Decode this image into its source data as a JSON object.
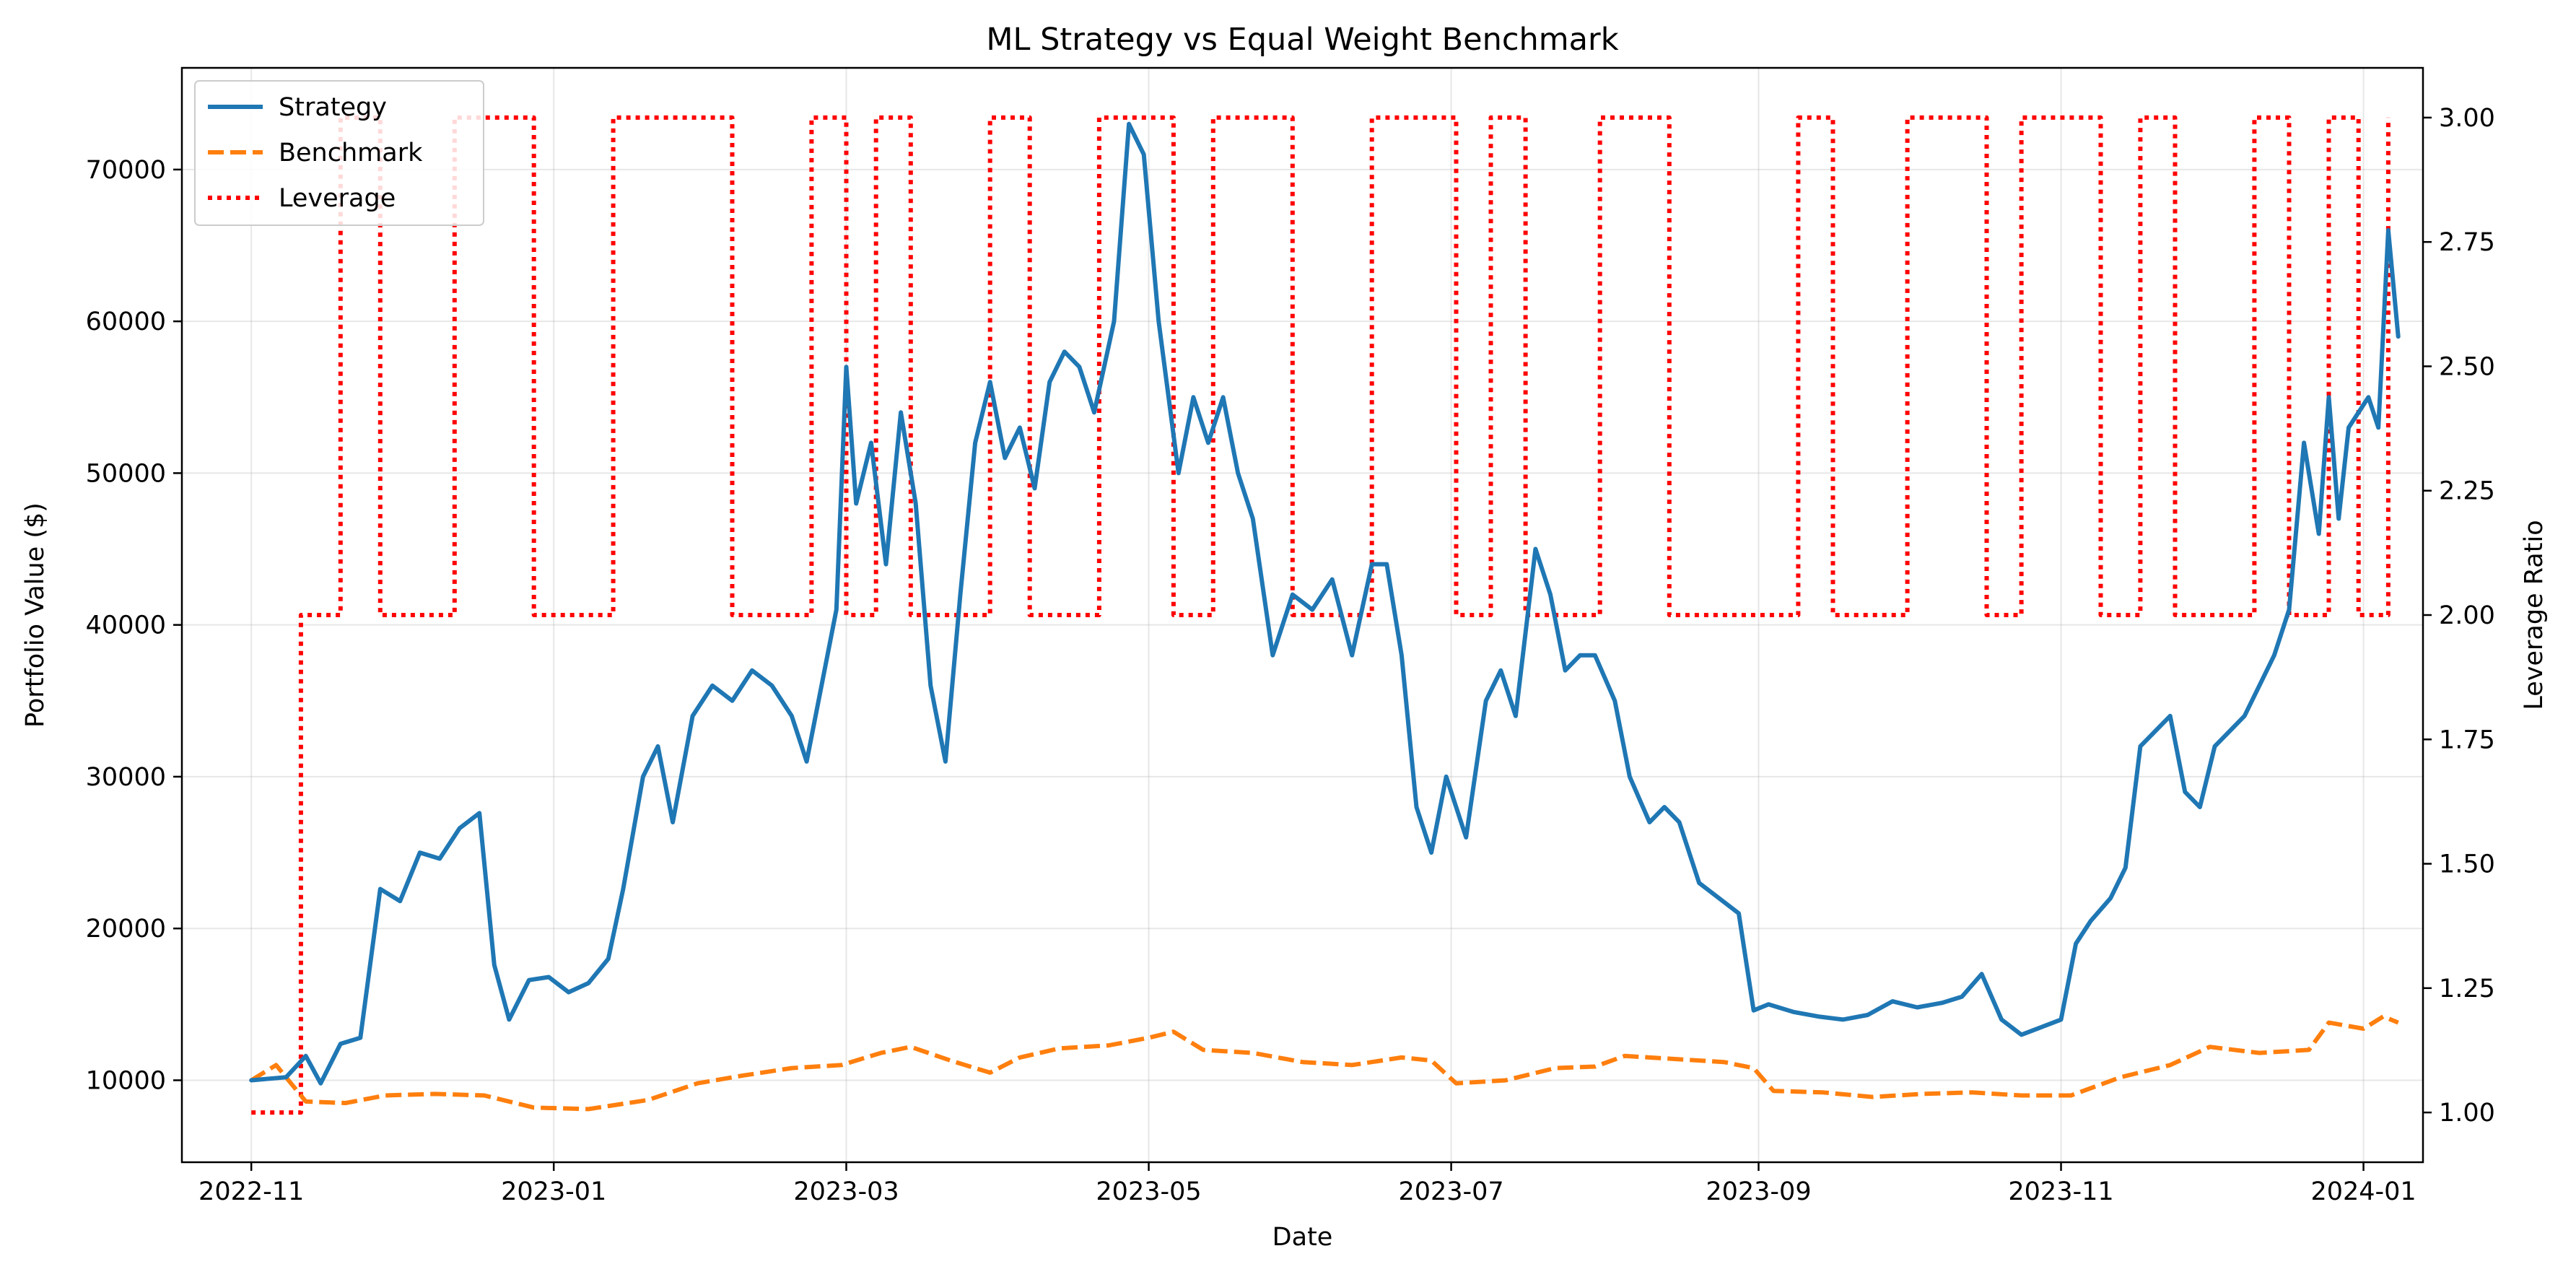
{
  "chart_data": {
    "type": "line",
    "title": "ML Strategy vs Equal Weight Benchmark",
    "xlabel": "Date",
    "ylabel": "Portfolio Value ($)",
    "y2label": "Leverage Ratio",
    "xlim": [
      "2022-10-18",
      "2024-01-13"
    ],
    "ylim": [
      4600,
      76700
    ],
    "y2lim": [
      0.9,
      3.1
    ],
    "x_ticks": [
      "2022-11-01",
      "2023-01-01",
      "2023-03-01",
      "2023-05-01",
      "2023-07-01",
      "2023-09-01",
      "2023-11-01",
      "2024-01-01"
    ],
    "x_tick_labels": [
      "2022-11",
      "2023-01",
      "2023-03",
      "2023-05",
      "2023-07",
      "2023-09",
      "2023-11",
      "2024-01"
    ],
    "y_ticks": [
      10000,
      20000,
      30000,
      40000,
      50000,
      60000,
      70000
    ],
    "y_tick_labels": [
      "10000",
      "20000",
      "30000",
      "40000",
      "50000",
      "60000",
      "70000"
    ],
    "y2_ticks": [
      1.0,
      1.25,
      1.5,
      1.75,
      2.0,
      2.25,
      2.5,
      2.75,
      3.0
    ],
    "y2_tick_labels": [
      "1.00",
      "1.25",
      "1.50",
      "1.75",
      "2.00",
      "2.25",
      "2.50",
      "2.75",
      "3.00"
    ],
    "grid": true,
    "legend_position": "top-left",
    "series": [
      {
        "name": "Strategy",
        "axis": "left",
        "color": "#1f77b4",
        "style": "solid",
        "points": [
          [
            "2022-11-01",
            10000
          ],
          [
            "2022-11-08",
            10200
          ],
          [
            "2022-11-12",
            11600
          ],
          [
            "2022-11-15",
            9800
          ],
          [
            "2022-11-19",
            12400
          ],
          [
            "2022-11-23",
            12800
          ],
          [
            "2022-11-27",
            22600
          ],
          [
            "2022-12-01",
            21800
          ],
          [
            "2022-12-05",
            25000
          ],
          [
            "2022-12-09",
            24600
          ],
          [
            "2022-12-13",
            26600
          ],
          [
            "2022-12-17",
            27600
          ],
          [
            "2022-12-20",
            17600
          ],
          [
            "2022-12-23",
            14000
          ],
          [
            "2022-12-27",
            16600
          ],
          [
            "2022-12-31",
            16800
          ],
          [
            "2023-01-04",
            15800
          ],
          [
            "2023-01-08",
            16400
          ],
          [
            "2023-01-12",
            18000
          ],
          [
            "2023-01-15",
            22600
          ],
          [
            "2023-01-19",
            30000
          ],
          [
            "2023-01-22",
            32000
          ],
          [
            "2023-01-25",
            27000
          ],
          [
            "2023-01-29",
            34000
          ],
          [
            "2023-02-02",
            36000
          ],
          [
            "2023-02-06",
            35000
          ],
          [
            "2023-02-10",
            37000
          ],
          [
            "2023-02-14",
            36000
          ],
          [
            "2023-02-18",
            34000
          ],
          [
            "2023-02-21",
            31000
          ],
          [
            "2023-02-24",
            36000
          ],
          [
            "2023-02-27",
            41000
          ],
          [
            "2023-03-01",
            57000
          ],
          [
            "2023-03-03",
            48000
          ],
          [
            "2023-03-06",
            52000
          ],
          [
            "2023-03-09",
            44000
          ],
          [
            "2023-03-12",
            54000
          ],
          [
            "2023-03-15",
            48000
          ],
          [
            "2023-03-18",
            36000
          ],
          [
            "2023-03-21",
            31000
          ],
          [
            "2023-03-24",
            42000
          ],
          [
            "2023-03-27",
            52000
          ],
          [
            "2023-03-30",
            56000
          ],
          [
            "2023-04-02",
            51000
          ],
          [
            "2023-04-05",
            53000
          ],
          [
            "2023-04-08",
            49000
          ],
          [
            "2023-04-11",
            56000
          ],
          [
            "2023-04-14",
            58000
          ],
          [
            "2023-04-17",
            57000
          ],
          [
            "2023-04-20",
            54000
          ],
          [
            "2023-04-24",
            60000
          ],
          [
            "2023-04-27",
            73000
          ],
          [
            "2023-04-30",
            71000
          ],
          [
            "2023-05-03",
            60000
          ],
          [
            "2023-05-07",
            50000
          ],
          [
            "2023-05-10",
            55000
          ],
          [
            "2023-05-13",
            52000
          ],
          [
            "2023-05-16",
            55000
          ],
          [
            "2023-05-19",
            50000
          ],
          [
            "2023-05-22",
            47000
          ],
          [
            "2023-05-26",
            38000
          ],
          [
            "2023-05-30",
            42000
          ],
          [
            "2023-06-03",
            41000
          ],
          [
            "2023-06-07",
            43000
          ],
          [
            "2023-06-11",
            38000
          ],
          [
            "2023-06-15",
            44000
          ],
          [
            "2023-06-18",
            44000
          ],
          [
            "2023-06-21",
            38000
          ],
          [
            "2023-06-24",
            28000
          ],
          [
            "2023-06-27",
            25000
          ],
          [
            "2023-06-30",
            30000
          ],
          [
            "2023-07-04",
            26000
          ],
          [
            "2023-07-08",
            35000
          ],
          [
            "2023-07-11",
            37000
          ],
          [
            "2023-07-14",
            34000
          ],
          [
            "2023-07-18",
            45000
          ],
          [
            "2023-07-21",
            42000
          ],
          [
            "2023-07-24",
            37000
          ],
          [
            "2023-07-27",
            38000
          ],
          [
            "2023-07-30",
            38000
          ],
          [
            "2023-08-03",
            35000
          ],
          [
            "2023-08-06",
            30000
          ],
          [
            "2023-08-10",
            27000
          ],
          [
            "2023-08-13",
            28000
          ],
          [
            "2023-08-16",
            27000
          ],
          [
            "2023-08-20",
            23000
          ],
          [
            "2023-08-24",
            22000
          ],
          [
            "2023-08-28",
            21000
          ],
          [
            "2023-08-31",
            14600
          ],
          [
            "2023-09-03",
            15000
          ],
          [
            "2023-09-08",
            14500
          ],
          [
            "2023-09-13",
            14200
          ],
          [
            "2023-09-18",
            14000
          ],
          [
            "2023-09-23",
            14300
          ],
          [
            "2023-09-28",
            15200
          ],
          [
            "2023-10-03",
            14800
          ],
          [
            "2023-10-08",
            15100
          ],
          [
            "2023-10-12",
            15500
          ],
          [
            "2023-10-16",
            17000
          ],
          [
            "2023-10-20",
            14000
          ],
          [
            "2023-10-24",
            13000
          ],
          [
            "2023-10-28",
            13500
          ],
          [
            "2023-11-01",
            14000
          ],
          [
            "2023-11-04",
            19000
          ],
          [
            "2023-11-07",
            20500
          ],
          [
            "2023-11-11",
            22000
          ],
          [
            "2023-11-14",
            24000
          ],
          [
            "2023-11-17",
            32000
          ],
          [
            "2023-11-20",
            33000
          ],
          [
            "2023-11-23",
            34000
          ],
          [
            "2023-11-26",
            29000
          ],
          [
            "2023-11-29",
            28000
          ],
          [
            "2023-12-02",
            32000
          ],
          [
            "2023-12-05",
            33000
          ],
          [
            "2023-12-08",
            34000
          ],
          [
            "2023-12-11",
            36000
          ],
          [
            "2023-12-14",
            38000
          ],
          [
            "2023-12-17",
            41000
          ],
          [
            "2023-12-20",
            52000
          ],
          [
            "2023-12-23",
            46000
          ],
          [
            "2023-12-25",
            55000
          ],
          [
            "2023-12-27",
            47000
          ],
          [
            "2023-12-29",
            53000
          ],
          [
            "2023-12-31",
            54000
          ],
          [
            "2024-01-02",
            55000
          ],
          [
            "2024-01-04",
            53000
          ],
          [
            "2024-01-06",
            66000
          ],
          [
            "2024-01-08",
            59000
          ]
        ]
      },
      {
        "name": "Benchmark",
        "axis": "left",
        "color": "#ff7f0e",
        "style": "dashed",
        "points": [
          [
            "2022-11-01",
            10000
          ],
          [
            "2022-11-06",
            11000
          ],
          [
            "2022-11-12",
            8600
          ],
          [
            "2022-11-20",
            8500
          ],
          [
            "2022-11-28",
            9000
          ],
          [
            "2022-12-08",
            9100
          ],
          [
            "2022-12-18",
            9000
          ],
          [
            "2022-12-28",
            8200
          ],
          [
            "2023-01-08",
            8100
          ],
          [
            "2023-01-20",
            8700
          ],
          [
            "2023-01-30",
            9800
          ],
          [
            "2023-02-08",
            10300
          ],
          [
            "2023-02-18",
            10800
          ],
          [
            "2023-02-28",
            11000
          ],
          [
            "2023-03-08",
            11800
          ],
          [
            "2023-03-14",
            12200
          ],
          [
            "2023-03-22",
            11300
          ],
          [
            "2023-03-30",
            10500
          ],
          [
            "2023-04-05",
            11500
          ],
          [
            "2023-04-13",
            12100
          ],
          [
            "2023-04-23",
            12300
          ],
          [
            "2023-05-01",
            12800
          ],
          [
            "2023-05-06",
            13200
          ],
          [
            "2023-05-12",
            12000
          ],
          [
            "2023-05-22",
            11800
          ],
          [
            "2023-06-01",
            11200
          ],
          [
            "2023-06-11",
            11000
          ],
          [
            "2023-06-21",
            11500
          ],
          [
            "2023-06-27",
            11300
          ],
          [
            "2023-07-02",
            9800
          ],
          [
            "2023-07-12",
            10000
          ],
          [
            "2023-07-22",
            10800
          ],
          [
            "2023-07-30",
            10900
          ],
          [
            "2023-08-05",
            11600
          ],
          [
            "2023-08-15",
            11400
          ],
          [
            "2023-08-25",
            11200
          ],
          [
            "2023-08-31",
            10800
          ],
          [
            "2023-09-04",
            9300
          ],
          [
            "2023-09-14",
            9200
          ],
          [
            "2023-09-24",
            8900
          ],
          [
            "2023-10-04",
            9100
          ],
          [
            "2023-10-14",
            9200
          ],
          [
            "2023-10-24",
            9000
          ],
          [
            "2023-11-03",
            9000
          ],
          [
            "2023-11-13",
            10200
          ],
          [
            "2023-11-23",
            11000
          ],
          [
            "2023-12-01",
            12200
          ],
          [
            "2023-12-11",
            11800
          ],
          [
            "2023-12-21",
            12000
          ],
          [
            "2023-12-25",
            13800
          ],
          [
            "2024-01-01",
            13400
          ],
          [
            "2024-01-05",
            14200
          ],
          [
            "2024-01-08",
            13800
          ]
        ]
      },
      {
        "name": "Leverage",
        "axis": "right",
        "color": "#ff0000",
        "style": "dotted",
        "points": [
          [
            "2022-11-01",
            1.0
          ],
          [
            "2022-11-11",
            1.0
          ],
          [
            "2022-11-11",
            2.0
          ],
          [
            "2022-11-19",
            2.0
          ],
          [
            "2022-11-19",
            3.0
          ],
          [
            "2022-11-27",
            3.0
          ],
          [
            "2022-11-27",
            2.0
          ],
          [
            "2022-12-12",
            2.0
          ],
          [
            "2022-12-12",
            3.0
          ],
          [
            "2022-12-28",
            3.0
          ],
          [
            "2022-12-28",
            2.0
          ],
          [
            "2023-01-13",
            2.0
          ],
          [
            "2023-01-13",
            3.0
          ],
          [
            "2023-02-06",
            3.0
          ],
          [
            "2023-02-06",
            2.0
          ],
          [
            "2023-02-22",
            2.0
          ],
          [
            "2023-02-22",
            3.0
          ],
          [
            "2023-03-01",
            3.0
          ],
          [
            "2023-03-01",
            2.0
          ],
          [
            "2023-03-07",
            2.0
          ],
          [
            "2023-03-07",
            3.0
          ],
          [
            "2023-03-14",
            3.0
          ],
          [
            "2023-03-14",
            2.0
          ],
          [
            "2023-03-30",
            2.0
          ],
          [
            "2023-03-30",
            3.0
          ],
          [
            "2023-04-07",
            3.0
          ],
          [
            "2023-04-07",
            2.0
          ],
          [
            "2023-04-21",
            2.0
          ],
          [
            "2023-04-21",
            3.0
          ],
          [
            "2023-05-06",
            3.0
          ],
          [
            "2023-05-06",
            2.0
          ],
          [
            "2023-05-14",
            2.0
          ],
          [
            "2023-05-14",
            3.0
          ],
          [
            "2023-05-30",
            3.0
          ],
          [
            "2023-05-30",
            2.0
          ],
          [
            "2023-06-15",
            2.0
          ],
          [
            "2023-06-15",
            3.0
          ],
          [
            "2023-07-02",
            3.0
          ],
          [
            "2023-07-02",
            2.0
          ],
          [
            "2023-07-09",
            2.0
          ],
          [
            "2023-07-09",
            3.0
          ],
          [
            "2023-07-16",
            3.0
          ],
          [
            "2023-07-16",
            2.0
          ],
          [
            "2023-07-31",
            2.0
          ],
          [
            "2023-07-31",
            3.0
          ],
          [
            "2023-08-14",
            3.0
          ],
          [
            "2023-08-14",
            2.0
          ],
          [
            "2023-09-09",
            2.0
          ],
          [
            "2023-09-09",
            3.0
          ],
          [
            "2023-09-16",
            3.0
          ],
          [
            "2023-09-16",
            2.0
          ],
          [
            "2023-10-01",
            2.0
          ],
          [
            "2023-10-01",
            3.0
          ],
          [
            "2023-10-17",
            3.0
          ],
          [
            "2023-10-17",
            2.0
          ],
          [
            "2023-10-24",
            2.0
          ],
          [
            "2023-10-24",
            3.0
          ],
          [
            "2023-11-09",
            3.0
          ],
          [
            "2023-11-09",
            2.0
          ],
          [
            "2023-11-17",
            2.0
          ],
          [
            "2023-11-17",
            3.0
          ],
          [
            "2023-11-24",
            3.0
          ],
          [
            "2023-11-24",
            2.0
          ],
          [
            "2023-12-10",
            2.0
          ],
          [
            "2023-12-10",
            3.0
          ],
          [
            "2023-12-17",
            3.0
          ],
          [
            "2023-12-17",
            2.0
          ],
          [
            "2023-12-25",
            2.0
          ],
          [
            "2023-12-25",
            3.0
          ],
          [
            "2023-12-31",
            3.0
          ],
          [
            "2023-12-31",
            2.0
          ],
          [
            "2024-01-06",
            2.0
          ],
          [
            "2024-01-06",
            3.0
          ]
        ]
      }
    ]
  }
}
